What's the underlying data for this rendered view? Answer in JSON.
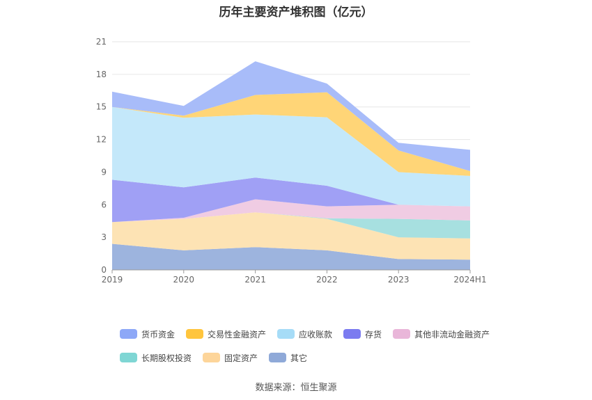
{
  "title": "历年主要资产堆积图（亿元）",
  "source": "数据来源：恒生聚源",
  "chart_data": {
    "type": "area",
    "stacked": true,
    "title": "历年主要资产堆积图（亿元）",
    "categories": [
      "2019",
      "2020",
      "2021",
      "2022",
      "2023",
      "2024H1"
    ],
    "ylim": [
      0,
      21
    ],
    "yticks": [
      0,
      3,
      6,
      9,
      12,
      15,
      18,
      21
    ],
    "grid": true,
    "legend_position": "bottom",
    "series": [
      {
        "name": "其它",
        "color": "#9db4de",
        "values": [
          2.4,
          1.8,
          2.1,
          1.8,
          1.0,
          0.95
        ]
      },
      {
        "name": "固定资产",
        "color": "#fde3b4",
        "values": [
          2.0,
          2.9,
          3.2,
          2.9,
          2.0,
          1.95
        ]
      },
      {
        "name": "长期股权投资",
        "color": "#a7e0e0",
        "values": [
          0.0,
          0.0,
          0.0,
          0.05,
          1.7,
          1.65
        ]
      },
      {
        "name": "其他非流动金融资产",
        "color": "#f0cce3",
        "values": [
          0.0,
          0.1,
          1.2,
          1.1,
          1.3,
          1.3
        ]
      },
      {
        "name": "存货",
        "color": "#a0a0f5",
        "values": [
          3.9,
          2.8,
          2.0,
          1.9,
          0.0,
          0.0
        ]
      },
      {
        "name": "应收账款",
        "color": "#c4e8fa",
        "values": [
          6.7,
          6.4,
          5.8,
          6.3,
          3.0,
          2.8
        ]
      },
      {
        "name": "交易性金融资产",
        "color": "#ffd577",
        "values": [
          0.0,
          0.2,
          1.8,
          2.3,
          2.0,
          0.45
        ]
      },
      {
        "name": "货币资金",
        "color": "#a8bcf9",
        "values": [
          1.4,
          0.9,
          3.1,
          0.8,
          0.7,
          1.95
        ]
      }
    ]
  },
  "legend": [
    {
      "label": "货币资金",
      "color": "#8da8f7"
    },
    {
      "label": "交易性金融资产",
      "color": "#ffc53d"
    },
    {
      "label": "应收账款",
      "color": "#a6dcf7"
    },
    {
      "label": "存货",
      "color": "#7b7bf0"
    },
    {
      "label": "其他非流动金融资产",
      "color": "#e9b6d9"
    },
    {
      "label": "长期股权投资",
      "color": "#7fd6d4"
    },
    {
      "label": "固定资产",
      "color": "#fdd59a"
    },
    {
      "label": "其它",
      "color": "#8fa9d8"
    }
  ]
}
